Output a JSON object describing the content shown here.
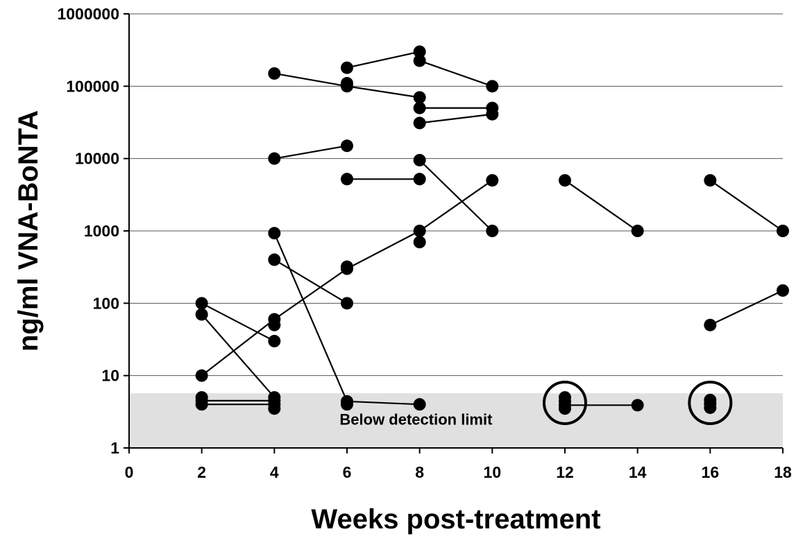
{
  "chart_data": {
    "type": "scatter",
    "title": "",
    "xlabel": "Weeks post-treatment",
    "ylabel": "ng/ml VNA-BoNTA",
    "xlim": [
      0,
      18
    ],
    "ylim": [
      1,
      1000000
    ],
    "yscale": "log",
    "grid": "horizontal",
    "x_ticks": [
      "0",
      "2",
      "4",
      "6",
      "8",
      "10",
      "12",
      "14",
      "16",
      "18"
    ],
    "y_ticks": [
      "1",
      "10",
      "100",
      "1000",
      "10000",
      "100000",
      "1000000"
    ],
    "annotations": [
      {
        "text": "Below detection limit",
        "region": {
          "y_from": 1,
          "y_to": 5.7
        }
      }
    ],
    "highlight_circles": [
      {
        "x": 12,
        "y": 4.2
      },
      {
        "x": 16,
        "y": 4.2
      }
    ],
    "lines": [
      [
        [
          4,
          150000
        ],
        [
          6,
          100000
        ],
        [
          8,
          70000
        ]
      ],
      [
        [
          6,
          180000
        ],
        [
          8,
          300000
        ]
      ],
      [
        [
          8,
          225000
        ],
        [
          10,
          100000
        ]
      ],
      [
        [
          6,
          110000
        ]
      ],
      [
        [
          8,
          50000
        ],
        [
          10,
          50000
        ]
      ],
      [
        [
          8,
          31000
        ],
        [
          10,
          41000
        ]
      ],
      [
        [
          4,
          10000
        ],
        [
          6,
          15000
        ]
      ],
      [
        [
          6,
          5200
        ],
        [
          8,
          5200
        ]
      ],
      [
        [
          8,
          9500
        ],
        [
          10,
          1000
        ]
      ],
      [
        [
          2,
          10
        ],
        [
          4,
          60
        ],
        [
          6,
          300
        ],
        [
          8,
          1000
        ],
        [
          10,
          5000
        ]
      ],
      [
        [
          6,
          320
        ]
      ],
      [
        [
          8,
          700
        ]
      ],
      [
        [
          12,
          5000
        ],
        [
          14,
          1000
        ]
      ],
      [
        [
          16,
          5000
        ],
        [
          18,
          1000
        ]
      ],
      [
        [
          16,
          50
        ],
        [
          18,
          150
        ]
      ],
      [
        [
          4,
          930
        ],
        [
          6,
          4.4
        ],
        [
          8,
          4
        ]
      ],
      [
        [
          4,
          400
        ],
        [
          6,
          100
        ]
      ],
      [
        [
          2,
          100
        ],
        [
          4,
          30
        ]
      ],
      [
        [
          2,
          70
        ],
        [
          4,
          5
        ]
      ],
      [
        [
          4,
          50
        ]
      ],
      [
        [
          2,
          5
        ]
      ],
      [
        [
          2,
          4.5
        ],
        [
          4,
          4.5
        ]
      ],
      [
        [
          2,
          4
        ],
        [
          4,
          4
        ]
      ],
      [
        [
          4,
          3.5
        ]
      ],
      [
        [
          6,
          4
        ]
      ],
      [
        [
          12,
          3.9
        ],
        [
          14,
          3.9
        ]
      ],
      [
        [
          12,
          4.4
        ]
      ],
      [
        [
          12,
          5
        ]
      ],
      [
        [
          12,
          3.5
        ]
      ],
      [
        [
          16,
          4.6
        ]
      ],
      [
        [
          16,
          4.1
        ]
      ],
      [
        [
          16,
          3.6
        ]
      ]
    ]
  }
}
